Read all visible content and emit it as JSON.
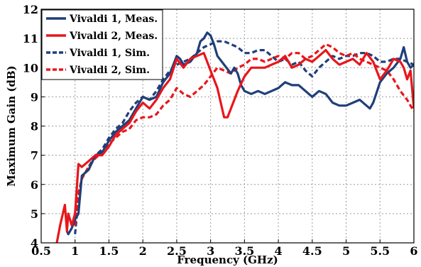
{
  "chart_data": {
    "type": "line",
    "title": "",
    "xlabel": "Frequency (GHz)",
    "ylabel": "Maximum Gain (dB)",
    "xlim": [
      0.5,
      6
    ],
    "ylim": [
      4,
      12
    ],
    "grid": true,
    "legend_position": "top-left",
    "xticks": [
      0.5,
      1,
      1.5,
      2,
      2.5,
      3,
      3.5,
      4,
      4.5,
      5,
      5.5,
      6
    ],
    "xtick_labels": [
      "0.5",
      "1",
      "1.5",
      "2",
      "2.5",
      "3",
      "3.5",
      "4",
      "4.5",
      "5",
      "5.5",
      "6"
    ],
    "yticks": [
      4,
      5,
      6,
      7,
      8,
      9,
      10,
      11,
      12
    ],
    "ytick_labels": [
      "4",
      "5",
      "6",
      "7",
      "8",
      "9",
      "10",
      "11",
      "12"
    ],
    "series": [
      {
        "name": "Vivaldi 1, Meas.",
        "color": "#1f3f7a",
        "dash": "solid",
        "x": [
          0.88,
          0.9,
          0.95,
          1.0,
          1.05,
          1.1,
          1.2,
          1.3,
          1.4,
          1.5,
          1.6,
          1.7,
          1.8,
          1.9,
          2.0,
          2.1,
          2.2,
          2.3,
          2.4,
          2.5,
          2.55,
          2.6,
          2.7,
          2.8,
          2.85,
          2.9,
          2.95,
          3.0,
          3.05,
          3.1,
          3.2,
          3.3,
          3.35,
          3.4,
          3.45,
          3.5,
          3.6,
          3.7,
          3.8,
          3.9,
          4.0,
          4.1,
          4.2,
          4.3,
          4.4,
          4.5,
          4.6,
          4.7,
          4.8,
          4.9,
          5.0,
          5.1,
          5.2,
          5.3,
          5.35,
          5.4,
          5.5,
          5.6,
          5.7,
          5.8,
          5.85,
          5.9,
          5.95,
          6.0
        ],
        "y": [
          4.4,
          4.3,
          4.5,
          4.8,
          5.0,
          6.3,
          6.5,
          7.0,
          7.1,
          7.5,
          7.8,
          8.0,
          8.2,
          8.6,
          9.0,
          8.9,
          9.0,
          9.5,
          9.8,
          10.4,
          10.3,
          10.1,
          10.2,
          10.5,
          10.9,
          11.0,
          11.2,
          11.1,
          10.8,
          10.4,
          10.1,
          9.8,
          10.0,
          9.8,
          9.4,
          9.2,
          9.1,
          9.2,
          9.1,
          9.2,
          9.3,
          9.5,
          9.4,
          9.4,
          9.2,
          9.0,
          9.2,
          9.1,
          8.8,
          8.7,
          8.7,
          8.8,
          8.9,
          8.7,
          8.6,
          8.8,
          9.5,
          9.8,
          10.0,
          10.3,
          10.7,
          10.2,
          10.0,
          10.1
        ]
      },
      {
        "name": "Vivaldi 2, Meas.",
        "color": "#e8161b",
        "dash": "solid",
        "x": [
          0.73,
          0.78,
          0.85,
          0.88,
          0.9,
          0.95,
          1.0,
          1.05,
          1.1,
          1.2,
          1.3,
          1.4,
          1.5,
          1.6,
          1.7,
          1.8,
          1.9,
          2.0,
          2.1,
          2.2,
          2.3,
          2.4,
          2.5,
          2.6,
          2.7,
          2.8,
          2.9,
          3.0,
          3.1,
          3.2,
          3.25,
          3.3,
          3.4,
          3.5,
          3.6,
          3.7,
          3.8,
          3.9,
          4.0,
          4.1,
          4.2,
          4.3,
          4.4,
          4.5,
          4.6,
          4.7,
          4.8,
          4.9,
          5.0,
          5.1,
          5.2,
          5.3,
          5.4,
          5.5,
          5.6,
          5.7,
          5.8,
          5.85,
          5.9,
          5.95,
          6.0
        ],
        "y": [
          4.0,
          4.6,
          5.3,
          4.4,
          5.0,
          4.6,
          5.0,
          6.7,
          6.6,
          6.8,
          7.0,
          7.0,
          7.3,
          7.7,
          7.9,
          8.1,
          8.5,
          8.8,
          8.6,
          8.9,
          9.3,
          9.6,
          10.3,
          10.0,
          10.3,
          10.4,
          10.5,
          9.9,
          9.3,
          8.3,
          8.3,
          8.6,
          9.2,
          9.7,
          10.0,
          10.0,
          10.0,
          10.1,
          10.2,
          10.4,
          10.0,
          10.1,
          10.3,
          10.2,
          10.4,
          10.6,
          10.3,
          10.1,
          10.2,
          10.3,
          10.1,
          10.5,
          10.2,
          9.6,
          9.9,
          10.3,
          10.2,
          10.0,
          9.6,
          9.9,
          8.6
        ]
      },
      {
        "name": "Vivaldi 1, Sim.",
        "color": "#1f3f7a",
        "dash": "dashed",
        "x": [
          1.0,
          1.05,
          1.1,
          1.2,
          1.3,
          1.4,
          1.5,
          1.6,
          1.7,
          1.8,
          1.9,
          2.0,
          2.1,
          2.2,
          2.3,
          2.4,
          2.5,
          2.6,
          2.7,
          2.8,
          2.9,
          3.0,
          3.1,
          3.2,
          3.3,
          3.4,
          3.5,
          3.6,
          3.7,
          3.8,
          3.9,
          4.0,
          4.1,
          4.2,
          4.3,
          4.4,
          4.5,
          4.6,
          4.7,
          4.8,
          4.9,
          5.0,
          5.1,
          5.2,
          5.3,
          5.4,
          5.5,
          5.6,
          5.7,
          5.8,
          5.9,
          6.0
        ],
        "y": [
          4.3,
          5.5,
          6.2,
          6.6,
          7.0,
          7.2,
          7.6,
          7.9,
          8.1,
          8.5,
          8.8,
          9.0,
          8.9,
          9.2,
          9.6,
          9.9,
          10.1,
          10.2,
          10.3,
          10.5,
          10.7,
          10.8,
          10.9,
          10.9,
          10.8,
          10.7,
          10.5,
          10.5,
          10.6,
          10.6,
          10.4,
          10.2,
          10.3,
          10.1,
          10.2,
          9.9,
          9.7,
          10.0,
          10.2,
          10.4,
          10.3,
          10.4,
          10.4,
          10.5,
          10.5,
          10.4,
          10.2,
          10.2,
          10.3,
          10.3,
          10.2,
          10.1
        ]
      },
      {
        "name": "Vivaldi 2, Sim.",
        "color": "#e8161b",
        "dash": "dashed",
        "x": [
          1.0,
          1.05,
          1.1,
          1.2,
          1.3,
          1.4,
          1.5,
          1.6,
          1.7,
          1.8,
          1.9,
          2.0,
          2.1,
          2.2,
          2.3,
          2.4,
          2.5,
          2.6,
          2.7,
          2.8,
          2.9,
          3.0,
          3.1,
          3.2,
          3.3,
          3.4,
          3.5,
          3.6,
          3.7,
          3.8,
          3.9,
          4.0,
          4.1,
          4.2,
          4.3,
          4.4,
          4.5,
          4.6,
          4.7,
          4.8,
          4.9,
          5.0,
          5.1,
          5.2,
          5.3,
          5.4,
          5.5,
          5.6,
          5.7,
          5.8,
          5.9,
          6.0
        ],
        "y": [
          4.6,
          5.7,
          6.2,
          6.6,
          6.9,
          7.1,
          7.4,
          7.6,
          7.8,
          7.9,
          8.2,
          8.3,
          8.3,
          8.4,
          8.7,
          8.9,
          9.3,
          9.1,
          9.0,
          9.2,
          9.4,
          9.7,
          10.0,
          9.9,
          9.8,
          10.0,
          10.1,
          10.3,
          10.3,
          10.2,
          10.3,
          10.4,
          10.3,
          10.5,
          10.5,
          10.3,
          10.4,
          10.6,
          10.8,
          10.7,
          10.5,
          10.4,
          10.5,
          10.3,
          10.2,
          10.1,
          10.0,
          9.9,
          9.6,
          9.2,
          8.9,
          8.5
        ]
      }
    ]
  }
}
